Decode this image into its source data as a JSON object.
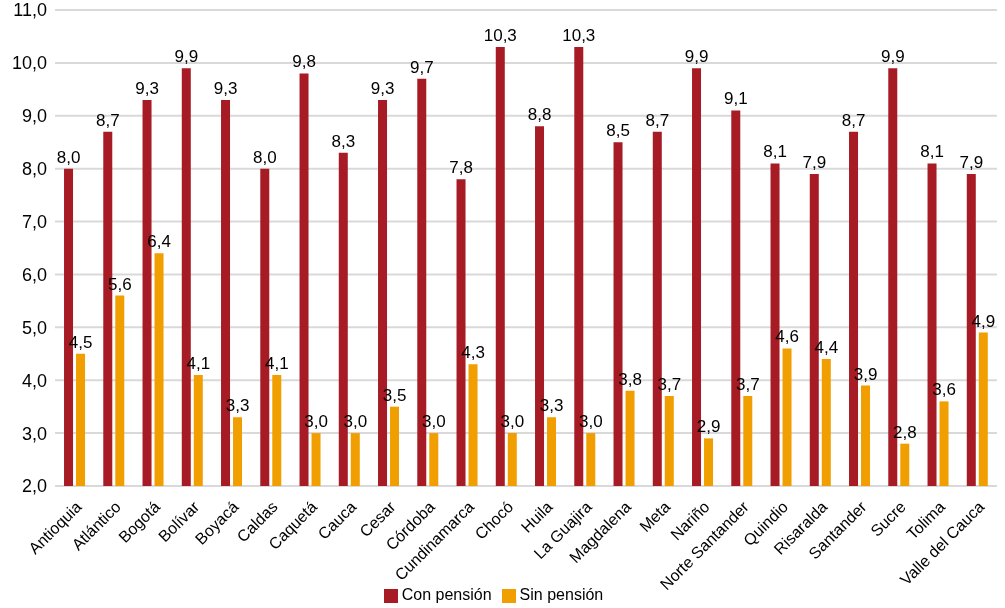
{
  "chart_data": {
    "type": "bar",
    "categories": [
      "Antioquia",
      "Atlántico",
      "Bogotá",
      "Bolívar",
      "Boyacá",
      "Caldas",
      "Caquetá",
      "Cauca",
      "Cesar",
      "Córdoba",
      "Cundinamarca",
      "Chocó",
      "Huila",
      "La Guajira",
      "Magdalena",
      "Meta",
      "Nariño",
      "Norte Santander",
      "Quindio",
      "Risaralda",
      "Santander",
      "Sucre",
      "Tolima",
      "Valle del Cauca"
    ],
    "series": [
      {
        "name": "Con pensión",
        "color": "#a61b24",
        "values": [
          8.0,
          8.7,
          9.3,
          9.9,
          9.3,
          8.0,
          9.8,
          8.3,
          9.3,
          9.7,
          7.8,
          10.3,
          8.8,
          10.3,
          8.5,
          8.7,
          9.9,
          9.1,
          8.1,
          7.9,
          8.7,
          9.9,
          8.1,
          7.9
        ],
        "value_labels": [
          "8,0",
          "8,7",
          "9,3",
          "9,9",
          "9,3",
          "8,0",
          "9,8",
          "8,3",
          "9,3",
          "9,7",
          "7,8",
          "10,3",
          "8,8",
          "10,3",
          "8,5",
          "8,7",
          "9,9",
          "9,1",
          "8,1",
          "7,9",
          "8,7",
          "9,9",
          "8,1",
          "7,9"
        ]
      },
      {
        "name": "Sin pensión",
        "color": "#f09e00",
        "values": [
          4.5,
          5.6,
          6.4,
          4.1,
          3.3,
          4.1,
          3.0,
          3.0,
          3.5,
          3.0,
          4.3,
          3.0,
          3.3,
          3.0,
          3.8,
          3.7,
          2.9,
          3.7,
          4.6,
          4.4,
          3.9,
          2.8,
          3.6,
          4.9
        ],
        "value_labels": [
          "4,5",
          "5,6",
          "6,4",
          "4,1",
          "3,3",
          "4,1",
          "3,0",
          "3,0",
          "3,5",
          "3,0",
          "4,3",
          "3,0",
          "3,3",
          "3,0",
          "3,8",
          "3,7",
          "2,9",
          "3,7",
          "4,6",
          "4,4",
          "3,9",
          "2,8",
          "3,6",
          "4,9"
        ]
      }
    ],
    "ylim": [
      2,
      11
    ],
    "yticks": [
      {
        "value": 2,
        "label": "2,0"
      },
      {
        "value": 3,
        "label": "3,0"
      },
      {
        "value": 4,
        "label": "4,0"
      },
      {
        "value": 5,
        "label": "5,0"
      },
      {
        "value": 6,
        "label": "6,0"
      },
      {
        "value": 7,
        "label": "7,0"
      },
      {
        "value": 8,
        "label": "8,0"
      },
      {
        "value": 9,
        "label": "9,0"
      },
      {
        "value": 10,
        "label": "10,0"
      },
      {
        "value": 11,
        "label": "11,0"
      }
    ],
    "grid": "y",
    "legend": "bottom"
  }
}
